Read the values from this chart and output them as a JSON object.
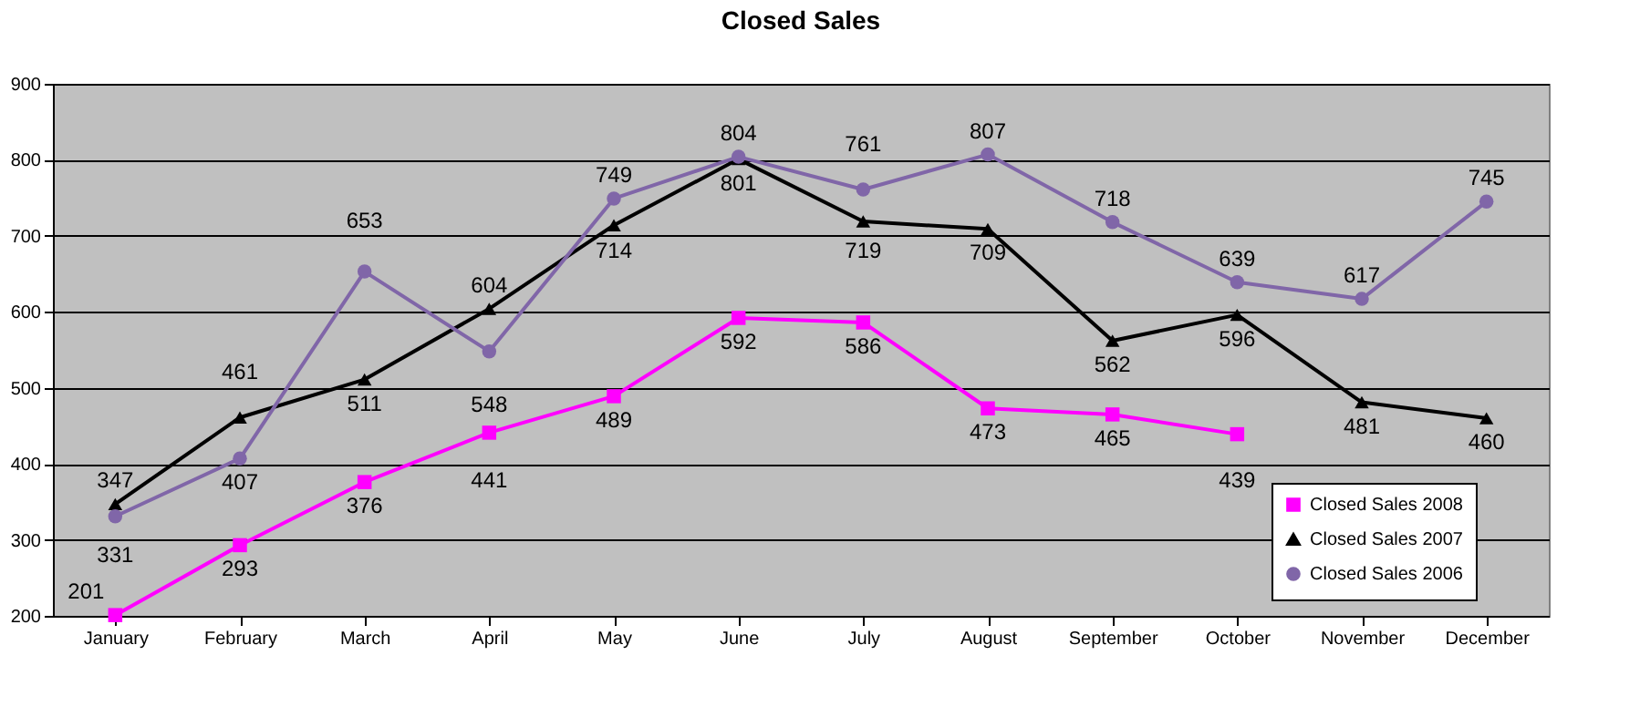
{
  "chart_data": {
    "type": "line",
    "title": "Closed Sales",
    "categories": [
      "January",
      "February",
      "March",
      "April",
      "May",
      "June",
      "July",
      "August",
      "September",
      "October",
      "November",
      "December"
    ],
    "series": [
      {
        "name": "Closed Sales 2008",
        "color": "#ff00ff",
        "marker": "square",
        "values": [
          201,
          293,
          376,
          441,
          489,
          592,
          586,
          473,
          465,
          439,
          null,
          null
        ]
      },
      {
        "name": "Closed Sales 2007",
        "color": "#000000",
        "marker": "triangle",
        "values": [
          347,
          461,
          511,
          604,
          714,
          801,
          719,
          709,
          562,
          596,
          481,
          460
        ]
      },
      {
        "name": "Closed Sales 2006",
        "color": "#8066a8",
        "marker": "circle",
        "values": [
          331,
          407,
          653,
          548,
          749,
          804,
          761,
          807,
          718,
          639,
          617,
          745
        ]
      }
    ],
    "ylim": [
      200,
      900
    ],
    "yticks": [
      200,
      300,
      400,
      500,
      600,
      700,
      800,
      900
    ],
    "grid": "y",
    "legend": "bottom right",
    "data_labels": true,
    "line_style": "solid"
  }
}
